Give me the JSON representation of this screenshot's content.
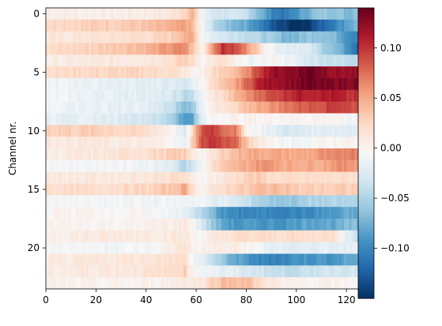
{
  "chart_data": {
    "type": "heatmap",
    "ylabel": "Channel nr.",
    "xlabel": "",
    "title": "",
    "x_range": [
      0,
      125
    ],
    "y_range": [
      0,
      22
    ],
    "x_ticks": [
      0,
      20,
      40,
      60,
      80,
      100,
      120
    ],
    "y_ticks": [
      0,
      5,
      10,
      15,
      20
    ],
    "colormap": "RdBu_r",
    "color_range": [
      -0.15,
      0.14
    ],
    "colorbar_ticks": [
      0.1,
      0.05,
      0.0,
      -0.05,
      -0.1
    ],
    "colorbar_tick_labels": [
      "0.10",
      "0.05",
      "0.00",
      "−0.05",
      "−0.10"
    ],
    "column_breakpoints": [
      0,
      20,
      40,
      50,
      55,
      58,
      62,
      66,
      70,
      75,
      80,
      85,
      90,
      95,
      100,
      105,
      110,
      115,
      120,
      124
    ],
    "channel_values": [
      [
        0.005,
        0.004,
        0.006,
        0.012,
        0.03,
        0.045,
        -0.01,
        -0.03,
        -0.03,
        -0.035,
        -0.04,
        -0.07,
        -0.1,
        -0.11,
        -0.09,
        -0.07,
        -0.06,
        -0.06,
        -0.07,
        -0.06
      ],
      [
        0.025,
        0.03,
        0.035,
        0.045,
        0.055,
        0.04,
        -0.01,
        -0.04,
        -0.06,
        -0.07,
        -0.08,
        -0.1,
        -0.13,
        -0.14,
        -0.15,
        -0.14,
        -0.12,
        -0.1,
        -0.08,
        -0.07
      ],
      [
        0.01,
        0.015,
        0.02,
        0.03,
        0.05,
        0.045,
        -0.005,
        -0.02,
        -0.03,
        -0.035,
        -0.04,
        -0.05,
        -0.06,
        -0.07,
        -0.07,
        -0.06,
        -0.06,
        -0.07,
        -0.09,
        -0.1
      ],
      [
        0.02,
        0.03,
        0.045,
        0.06,
        0.065,
        0.035,
        0.0,
        0.06,
        0.1,
        0.09,
        0.06,
        0.02,
        -0.01,
        -0.02,
        -0.02,
        -0.03,
        -0.05,
        -0.07,
        -0.09,
        -0.12
      ],
      [
        0.005,
        0.008,
        0.012,
        0.02,
        0.03,
        0.02,
        0.0,
        0.01,
        0.02,
        0.0,
        -0.01,
        -0.01,
        0.0,
        -0.01,
        -0.02,
        -0.03,
        -0.035,
        -0.04,
        -0.04,
        -0.04
      ],
      [
        0.02,
        0.025,
        0.025,
        0.02,
        0.01,
        0.0,
        0.0,
        0.02,
        0.03,
        0.04,
        0.06,
        0.1,
        0.12,
        0.125,
        0.13,
        0.14,
        0.13,
        0.12,
        0.12,
        0.12
      ],
      [
        -0.01,
        -0.015,
        -0.02,
        -0.025,
        -0.03,
        -0.02,
        0.0,
        0.02,
        0.03,
        0.05,
        0.08,
        0.11,
        0.12,
        0.125,
        0.13,
        0.135,
        0.13,
        0.13,
        0.13,
        0.13
      ],
      [
        -0.01,
        -0.015,
        -0.02,
        -0.03,
        -0.045,
        -0.04,
        -0.01,
        0.01,
        0.02,
        0.04,
        0.06,
        0.08,
        0.09,
        0.1,
        0.11,
        0.11,
        0.11,
        0.11,
        0.1,
        0.1
      ],
      [
        -0.01,
        -0.015,
        -0.02,
        -0.04,
        -0.07,
        -0.06,
        -0.01,
        0.01,
        0.01,
        0.02,
        0.04,
        0.05,
        0.06,
        0.07,
        0.08,
        0.085,
        0.09,
        0.1,
        0.09,
        0.09
      ],
      [
        -0.015,
        -0.02,
        -0.03,
        -0.05,
        -0.09,
        -0.08,
        -0.02,
        0.0,
        0.0,
        0.0,
        0.0,
        0.0,
        0.0,
        0.0,
        0.0,
        0.0,
        0.0,
        0.0,
        -0.01,
        -0.01
      ],
      [
        0.03,
        0.03,
        0.02,
        0.0,
        -0.03,
        0.02,
        0.09,
        0.1,
        0.08,
        0.07,
        0.0,
        -0.01,
        -0.02,
        -0.03,
        -0.03,
        -0.02,
        -0.02,
        -0.02,
        -0.02,
        -0.02
      ],
      [
        0.01,
        0.01,
        0.005,
        0.0,
        -0.02,
        0.03,
        0.09,
        0.1,
        0.09,
        0.08,
        0.03,
        0.01,
        0.0,
        -0.01,
        -0.01,
        -0.01,
        0.0,
        0.0,
        0.0,
        0.0
      ],
      [
        0.005,
        0.01,
        0.02,
        0.03,
        0.03,
        0.01,
        0.0,
        0.01,
        0.03,
        0.04,
        0.05,
        0.05,
        0.05,
        0.05,
        0.05,
        0.05,
        0.06,
        0.06,
        0.07,
        0.07
      ],
      [
        -0.005,
        -0.008,
        -0.01,
        -0.02,
        -0.05,
        -0.03,
        -0.01,
        0.02,
        0.03,
        0.04,
        0.05,
        0.06,
        0.06,
        0.05,
        0.05,
        0.05,
        0.05,
        0.06,
        0.06,
        0.06
      ],
      [
        0.01,
        0.01,
        0.012,
        0.02,
        0.02,
        0.0,
        0.0,
        0.005,
        0.01,
        0.02,
        0.03,
        0.03,
        0.02,
        0.02,
        0.02,
        0.02,
        0.02,
        0.02,
        0.02,
        0.02
      ],
      [
        0.02,
        0.02,
        0.025,
        0.035,
        0.05,
        0.02,
        0.0,
        0.01,
        0.02,
        0.03,
        0.03,
        0.04,
        0.04,
        0.04,
        0.03,
        0.03,
        0.03,
        0.03,
        0.03,
        0.03
      ],
      [
        -0.005,
        -0.01,
        -0.01,
        -0.01,
        -0.01,
        -0.01,
        -0.01,
        -0.02,
        -0.02,
        -0.03,
        -0.04,
        -0.05,
        -0.06,
        -0.06,
        -0.06,
        -0.05,
        -0.05,
        -0.05,
        -0.05,
        -0.05
      ],
      [
        0.0,
        0.0,
        -0.005,
        -0.01,
        -0.02,
        -0.03,
        -0.05,
        -0.07,
        -0.09,
        -0.1,
        -0.1,
        -0.1,
        -0.1,
        -0.1,
        -0.1,
        -0.1,
        -0.09,
        -0.09,
        -0.08,
        -0.08
      ],
      [
        0.0,
        0.0,
        0.0,
        0.005,
        0.01,
        0.0,
        -0.03,
        -0.06,
        -0.08,
        -0.09,
        -0.09,
        -0.09,
        -0.09,
        -0.09,
        -0.085,
        -0.08,
        -0.08,
        -0.08,
        -0.07,
        -0.07
      ],
      [
        0.005,
        0.008,
        0.01,
        0.01,
        0.01,
        0.0,
        0.0,
        0.005,
        0.01,
        0.02,
        0.02,
        0.02,
        0.02,
        0.02,
        0.02,
        0.02,
        0.02,
        0.02,
        -0.02,
        -0.04
      ],
      [
        -0.005,
        -0.008,
        -0.01,
        0.005,
        0.02,
        0.0,
        0.0,
        0.005,
        0.005,
        0.005,
        0.0,
        -0.01,
        -0.02,
        -0.02,
        -0.02,
        -0.02,
        -0.02,
        -0.02,
        -0.02,
        -0.02
      ],
      [
        0.005,
        0.01,
        0.015,
        0.02,
        0.02,
        -0.01,
        -0.02,
        -0.04,
        -0.06,
        -0.08,
        -0.09,
        -0.1,
        -0.1,
        -0.1,
        -0.09,
        -0.09,
        -0.09,
        -0.09,
        -0.08,
        -0.08
      ],
      [
        0.005,
        0.01,
        0.015,
        0.02,
        0.03,
        0.0,
        -0.01,
        -0.01,
        -0.02,
        -0.02,
        -0.03,
        -0.03,
        -0.04,
        -0.04,
        -0.04,
        -0.04,
        -0.03,
        -0.03,
        -0.03,
        -0.03
      ],
      [
        0.0,
        0.0,
        0.0,
        0.005,
        0.01,
        0.01,
        0.01,
        0.03,
        0.04,
        0.04,
        0.04,
        0.02,
        0.01,
        0.0,
        0.0,
        0.0,
        0.0,
        0.0,
        0.0,
        0.0
      ]
    ]
  }
}
